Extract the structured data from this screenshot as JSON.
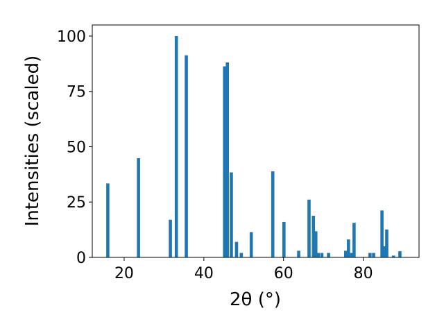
{
  "chart_data": {
    "type": "bar",
    "xlabel": "2θ (°)",
    "ylabel": "Intensities (scaled)",
    "xlim": [
      12,
      94
    ],
    "ylim": [
      0,
      105
    ],
    "xticks": [
      20,
      40,
      60,
      80
    ],
    "yticks": [
      0,
      25,
      50,
      75,
      100
    ],
    "grid": false,
    "bar_color": "#1f77b4",
    "bar_width": 0.8,
    "x": [
      15.9,
      23.6,
      31.6,
      33.1,
      35.6,
      45.2,
      45.9,
      46.9,
      48.2,
      49.4,
      51.9,
      57.3,
      60.1,
      63.8,
      66.4,
      67.5,
      68.1,
      68.7,
      69.6,
      71.3,
      75.6,
      76.3,
      77.1,
      77.7,
      81.7,
      82.6,
      84.7,
      85.3,
      85.9,
      87.6,
      89.2
    ],
    "values": [
      33.4,
      44.8,
      17.0,
      100.0,
      91.3,
      86.3,
      88.1,
      38.4,
      7.0,
      2.0,
      11.4,
      38.9,
      16.0,
      3.0,
      26.1,
      18.8,
      11.8,
      2.0,
      2.0,
      2.0,
      3.0,
      8.1,
      2.0,
      15.6,
      2.0,
      2.0,
      21.2,
      5.0,
      12.6,
      0.8,
      2.8
    ]
  }
}
